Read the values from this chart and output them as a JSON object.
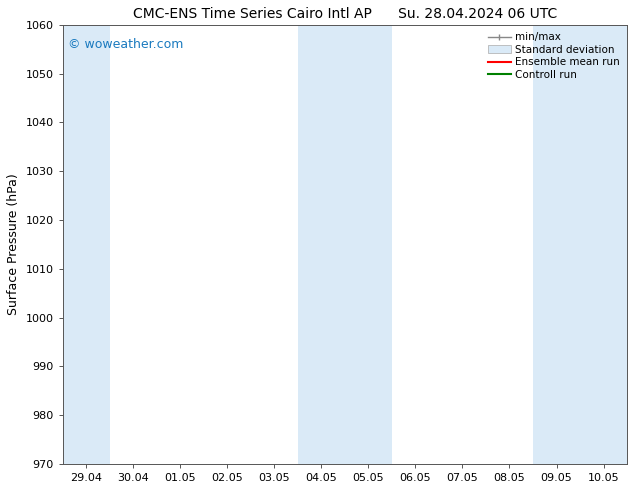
{
  "title": "CMC-ENS Time Series Cairo Intl AP",
  "title2": "Su. 28.04.2024 06 UTC",
  "ylabel": "Surface Pressure (hPa)",
  "ylim": [
    970,
    1060
  ],
  "yticks": [
    970,
    980,
    990,
    1000,
    1010,
    1020,
    1030,
    1040,
    1050,
    1060
  ],
  "xtick_labels": [
    "29.04",
    "30.04",
    "01.05",
    "02.05",
    "03.05",
    "04.05",
    "05.05",
    "06.05",
    "07.05",
    "08.05",
    "09.05",
    "10.05"
  ],
  "watermark": "© woweather.com",
  "watermark_color": "#1a7abf",
  "bg_color": "#ffffff",
  "plot_bg_color": "#ffffff",
  "shaded_band_color": "#daeaf7",
  "legend_labels": [
    "min/max",
    "Standard deviation",
    "Ensemble mean run",
    "Controll run"
  ],
  "legend_colors": [
    "#aaaaaa",
    "#c8dff0",
    "#ff0000",
    "#008000"
  ],
  "title_fontsize": 10,
  "tick_fontsize": 8,
  "ylabel_fontsize": 9,
  "watermark_fontsize": 9
}
